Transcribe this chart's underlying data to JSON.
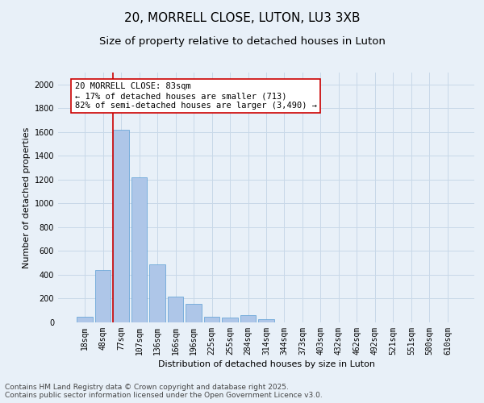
{
  "title": "20, MORRELL CLOSE, LUTON, LU3 3XB",
  "subtitle": "Size of property relative to detached houses in Luton",
  "xlabel": "Distribution of detached houses by size in Luton",
  "ylabel": "Number of detached properties",
  "categories": [
    "18sqm",
    "48sqm",
    "77sqm",
    "107sqm",
    "136sqm",
    "166sqm",
    "196sqm",
    "225sqm",
    "255sqm",
    "284sqm",
    "314sqm",
    "344sqm",
    "373sqm",
    "403sqm",
    "432sqm",
    "462sqm",
    "492sqm",
    "521sqm",
    "551sqm",
    "580sqm",
    "610sqm"
  ],
  "values": [
    50,
    440,
    1620,
    1220,
    490,
    220,
    155,
    50,
    40,
    60,
    30,
    0,
    0,
    0,
    0,
    0,
    0,
    0,
    0,
    0,
    0
  ],
  "bar_color": "#aec6e8",
  "bar_edge_color": "#5a9fd4",
  "property_line_color": "#cc0000",
  "property_line_index": 2,
  "annotation_text": "20 MORRELL CLOSE: 83sqm\n← 17% of detached houses are smaller (713)\n82% of semi-detached houses are larger (3,490) →",
  "annotation_box_color": "#cc0000",
  "annotation_box_fill": "white",
  "ylim": [
    0,
    2100
  ],
  "yticks": [
    0,
    200,
    400,
    600,
    800,
    1000,
    1200,
    1400,
    1600,
    1800,
    2000
  ],
  "grid_color": "#c8d8e8",
  "background_color": "#e8f0f8",
  "footer": "Contains HM Land Registry data © Crown copyright and database right 2025.\nContains public sector information licensed under the Open Government Licence v3.0.",
  "title_fontsize": 11,
  "subtitle_fontsize": 9.5,
  "axis_label_fontsize": 8,
  "tick_fontsize": 7,
  "annotation_fontsize": 7.5,
  "footer_fontsize": 6.5
}
